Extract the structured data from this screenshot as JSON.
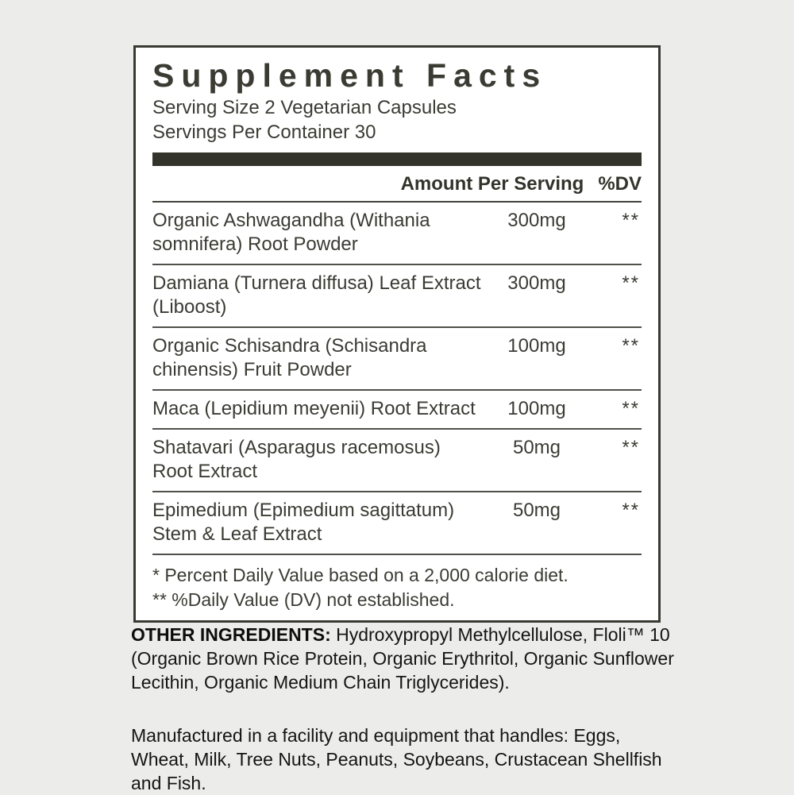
{
  "panel": {
    "title": "Supplement Facts",
    "serving_size": "Serving Size 2 Vegetarian Capsules",
    "servings_per_container": "Servings Per Container 30",
    "header": {
      "amount_label": "Amount Per Serving",
      "dv_label": "%DV"
    },
    "rows": [
      {
        "name": "Organic Ashwagandha (Withania somnifera) Root Powder",
        "amount": "300mg",
        "dv": "**"
      },
      {
        "name": "Damiana (Turnera diffusa) Leaf Extract (Liboost)",
        "amount": "300mg",
        "dv": "**"
      },
      {
        "name": "Organic Schisandra (Schisandra chinensis) Fruit Powder",
        "amount": "100mg",
        "dv": "**"
      },
      {
        "name": "Maca (Lepidium meyenii) Root Extract",
        "amount": "100mg",
        "dv": "**"
      },
      {
        "name": "Shatavari (Asparagus racemosus) Root Extract",
        "amount": "50mg",
        "dv": "**"
      },
      {
        "name": "Epimedium (Epimedium sagittatum) Stem & Leaf Extract",
        "amount": "50mg",
        "dv": "**"
      }
    ],
    "footnotes": [
      "* Percent Daily Value based on a 2,000 calorie diet.",
      "** %Daily Value (DV) not established."
    ],
    "colors": {
      "ink": "#3b3b34",
      "bar": "#33332c",
      "panel_bg": "#ffffff",
      "page_bg": "#ececea"
    }
  },
  "below": {
    "other_ingredients_label": "OTHER INGREDIENTS:",
    "other_ingredients_text": "Hydroxypropyl Methylcellulose, Floli™ 10 (Organic Brown Rice Protein, Organic Erythritol, Organic Sunflower Lecithin, Organic Medium Chain Triglycerides).",
    "allergen_text": "Manufactured in a facility and equipment that handles: Eggs, Wheat, Milk, Tree Nuts, Peanuts, Soybeans, Crustacean Shellfish and Fish."
  }
}
